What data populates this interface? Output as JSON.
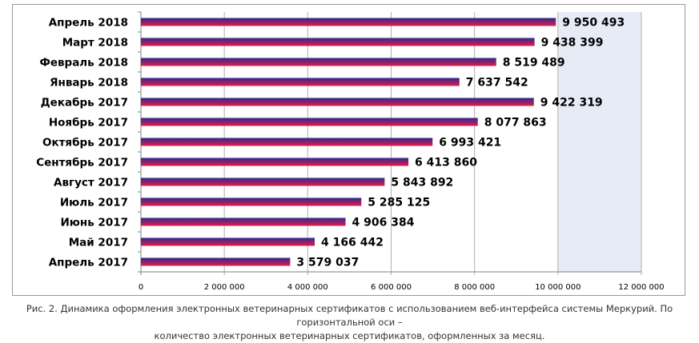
{
  "chart_data": {
    "type": "bar",
    "orientation": "horizontal",
    "categories": [
      "Апрель 2018",
      "Март 2018",
      "Февраль 2018",
      "Январь 2018",
      "Декабрь 2017",
      "Ноябрь 2017",
      "Октябрь 2017",
      "Сентябрь 2017",
      "Август 2017",
      "Июль 2017",
      "Июнь 2017",
      "Май 2017",
      "Апрель 2017"
    ],
    "values": [
      9950493,
      9438399,
      8519489,
      7637542,
      9422319,
      8077863,
      6993421,
      6413860,
      5843892,
      5285125,
      4906384,
      4166442,
      3579037
    ],
    "value_labels": [
      "9 950 493",
      "9 438 399",
      "8 519 489",
      "7 637 542",
      "9 422 319",
      "8 077 863",
      "6 993 421",
      "6 413 860",
      "5 843 892",
      "5 285 125",
      "4 906 384",
      "4 166 442",
      "3 579 037"
    ],
    "xlim": [
      0,
      12000000
    ],
    "xticks": [
      0,
      2000000,
      4000000,
      6000000,
      8000000,
      10000000,
      12000000
    ],
    "xtick_labels": [
      "0",
      "2 000 000",
      "4 000 000",
      "6 000 000",
      "8 000 000",
      "10 000 000",
      "12 000 000"
    ],
    "grid": "vertical",
    "legend": "none",
    "colors": {
      "bar_top": "#2b2a8f",
      "bar_bottom": "#e8184a",
      "plot_bg_shaded": "#e6ebf5",
      "grid": "#b0b0b0"
    }
  },
  "caption": {
    "line1": "Рис. 2. Динамика оформления электронных ветеринарных сертификатов с использованием веб-интерфейса системы Меркурий. По горизонтальной оси –",
    "line2": "количество электронных ветеринарных сертификатов, оформленных за месяц."
  }
}
